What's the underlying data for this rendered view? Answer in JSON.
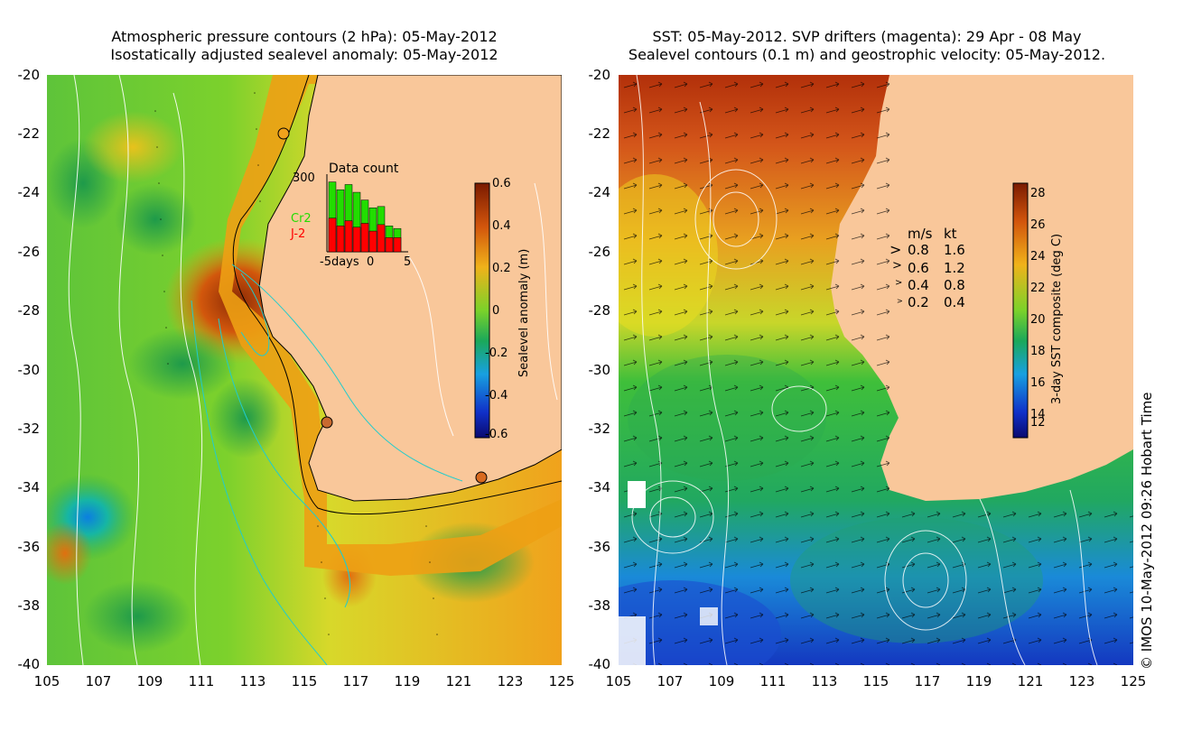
{
  "left_panel": {
    "title_line1": "Atmospheric pressure contours (2 hPa): 05-May-2012",
    "title_line2": "Isostatically adjusted sealevel anomaly: 05-May-2012",
    "colorbar_label": "Sealevel anomaly (m)",
    "colorbar_ticks": [
      "0.6",
      "0.4",
      "0.2",
      "0",
      "-0.2",
      "-0.4",
      "-0.6"
    ],
    "inset": {
      "title": "Data count",
      "ymax_label": "300",
      "legend_cr2": "Cr2",
      "legend_j2": "J-2",
      "xlabel_left": "-5days",
      "xlabel_mid": "0",
      "xlabel_right": "5",
      "green_values": [
        270,
        240,
        260,
        230,
        200,
        170,
        175,
        100,
        90
      ],
      "red_values": [
        130,
        100,
        120,
        95,
        110,
        80,
        105,
        55,
        55
      ]
    }
  },
  "right_panel": {
    "title_line1": "SST: 05-May-2012. SVP drifters (magenta): 29 Apr - 08 May",
    "title_line2": "Sealevel contours (0.1 m) and geostrophic velocity: 05-May-2012.",
    "colorbar_label": "3-day SST composite (deg C)",
    "colorbar_ticks": [
      "28",
      "26",
      "24",
      "22",
      "20",
      "18",
      "16",
      "14",
      "12"
    ],
    "velocity_legend": {
      "header_ms": "m/s",
      "header_kt": "kt",
      "rows": [
        {
          "ms": "0.8",
          "kt": "1.6"
        },
        {
          "ms": "0.6",
          "kt": "1.2"
        },
        {
          "ms": "0.4",
          "kt": "0.8"
        },
        {
          "ms": "0.2",
          "kt": "0.4"
        }
      ]
    }
  },
  "axes": {
    "y_ticks": [
      "-20",
      "-22",
      "-24",
      "-26",
      "-28",
      "-30",
      "-32",
      "-34",
      "-36",
      "-38",
      "-40"
    ],
    "x_ticks": [
      "105",
      "107",
      "109",
      "111",
      "113",
      "115",
      "117",
      "119",
      "121",
      "123",
      "125"
    ]
  },
  "credit": "© IMOS 10-May-2012 09:26 Hobart Time",
  "colors": {
    "land": "#f9c79a",
    "cr2": "#22dd00",
    "j2": "#ff0000"
  }
}
